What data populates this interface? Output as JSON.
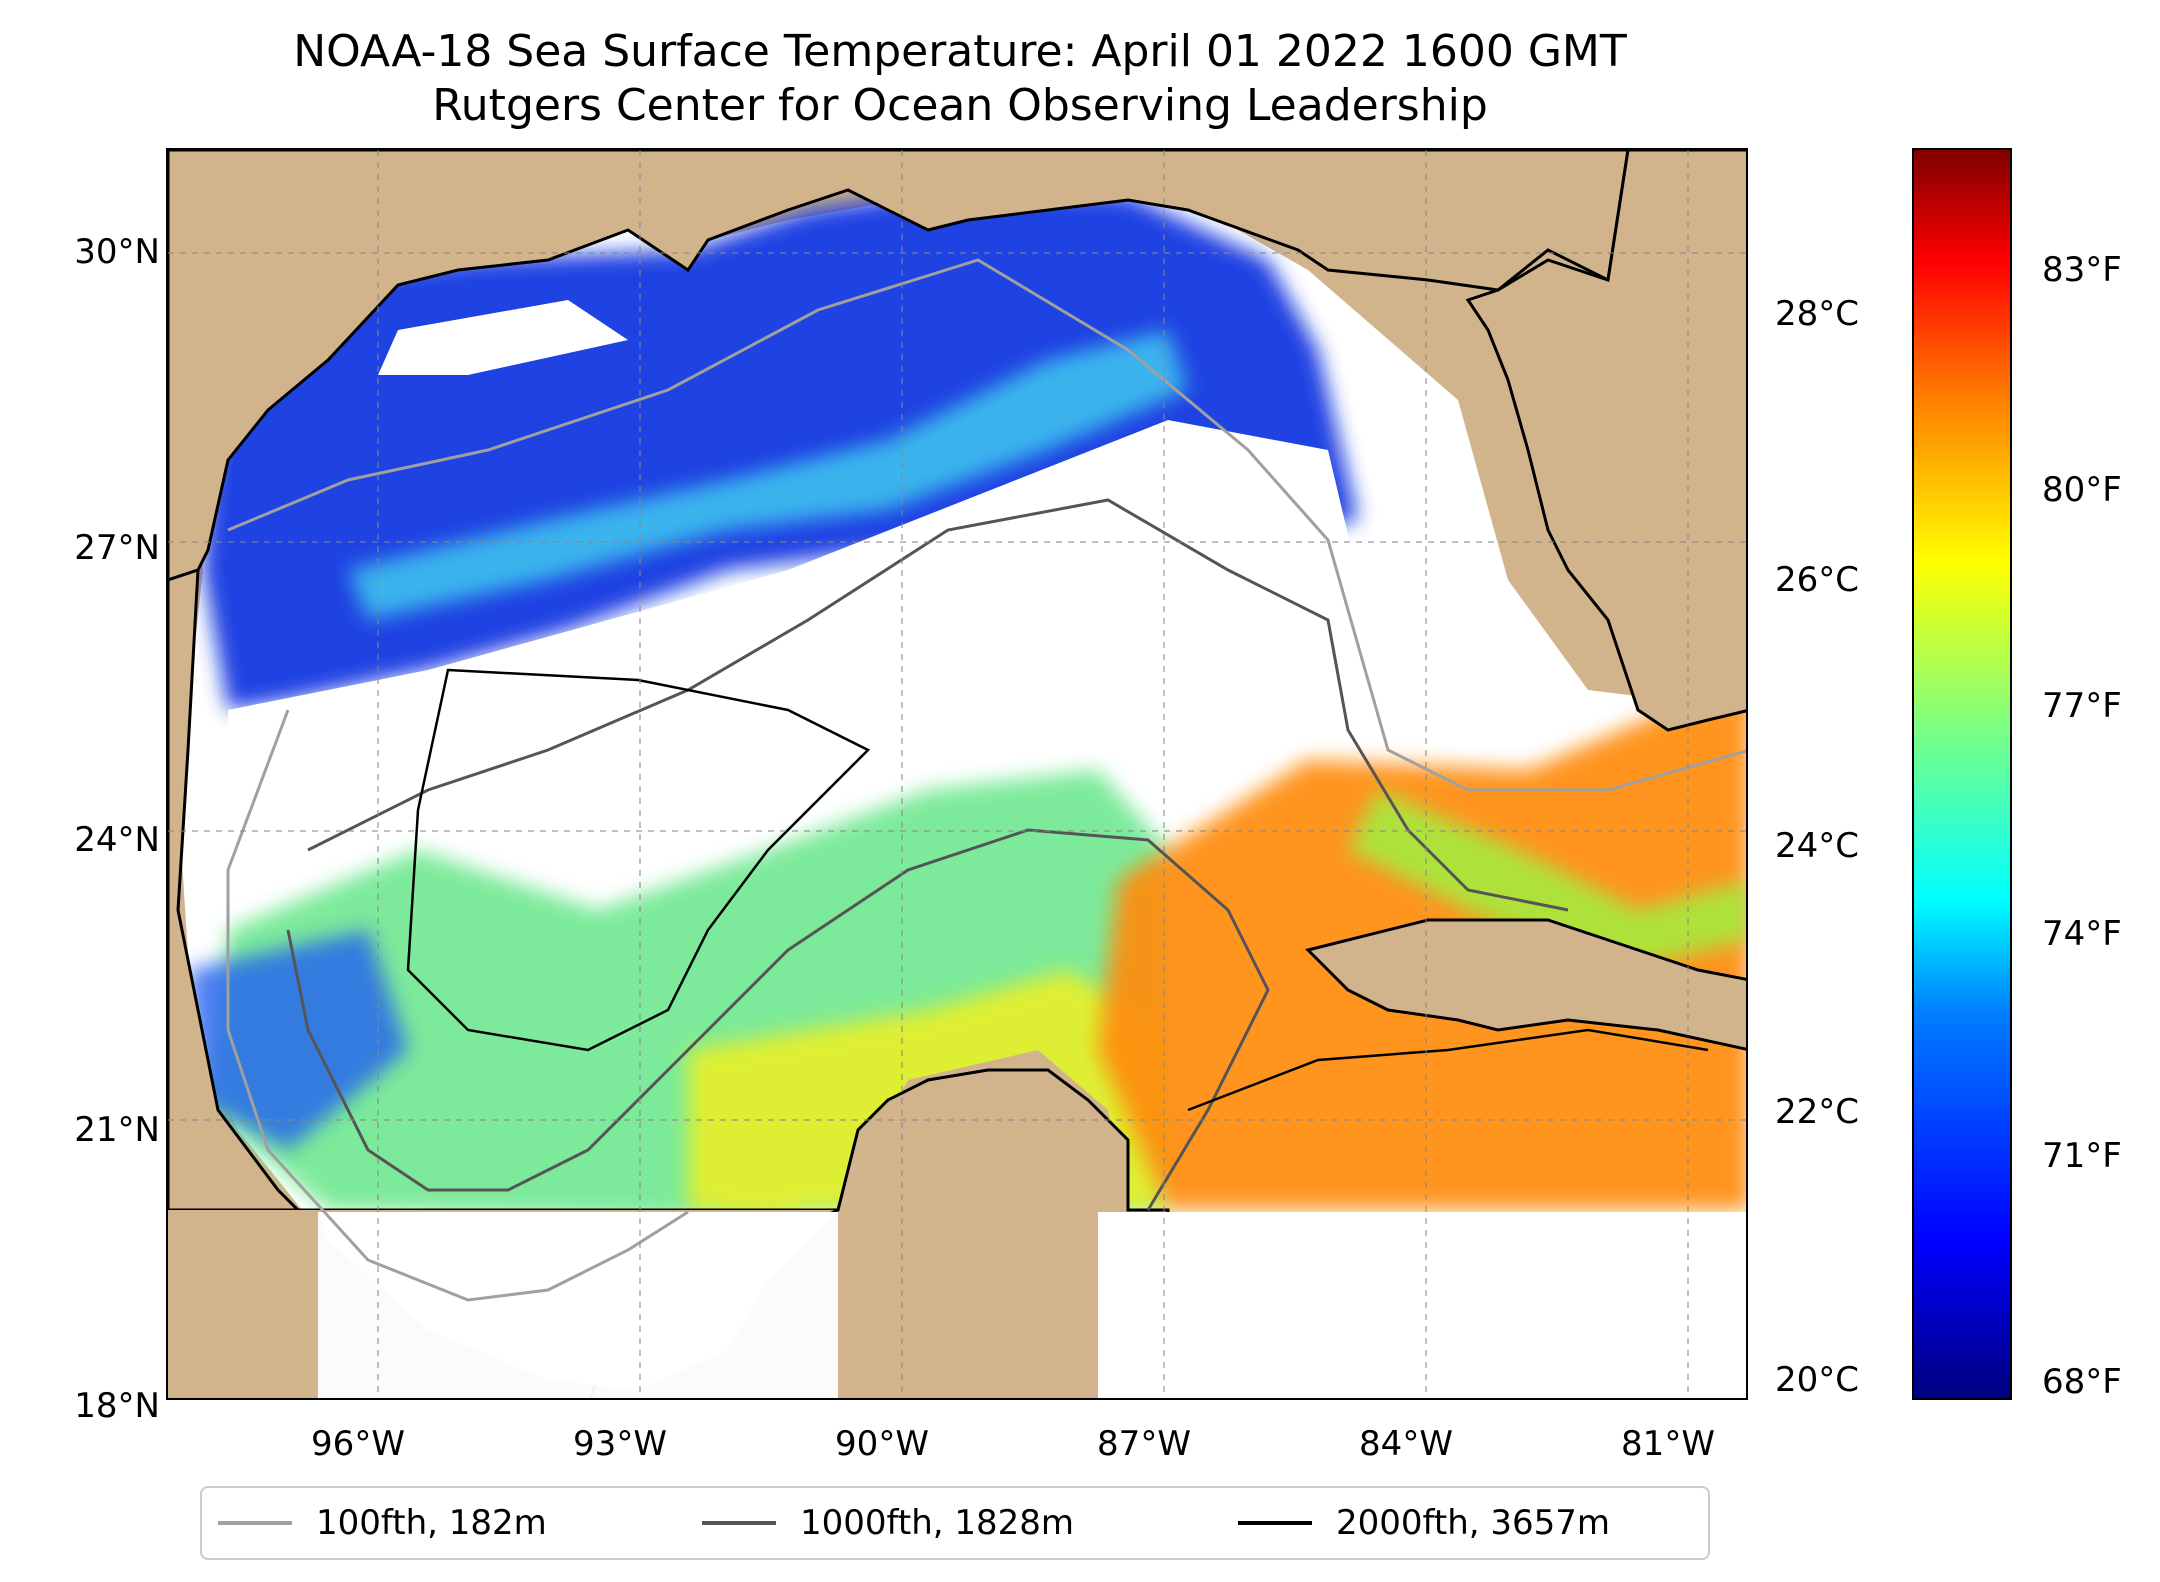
{
  "title": {
    "line1": "NOAA-18 Sea Surface Temperature: April 01 2022 1600 GMT",
    "line2": "Rutgers Center for Ocean Observing Leadership"
  },
  "map": {
    "lat_labels": [
      "30°N",
      "27°N",
      "24°N",
      "21°N",
      "18°N"
    ],
    "lon_labels": [
      "96°W",
      "93°W",
      "90°W",
      "87°W",
      "84°W",
      "81°W"
    ],
    "extent": {
      "lon": [
        -98.3,
        -80.3
      ],
      "lat": [
        18,
        31
      ]
    },
    "land_color": "#d2b48c",
    "gridlines": true
  },
  "colorbar": {
    "celsius_labels": [
      "28°C",
      "26°C",
      "24°C",
      "22°C",
      "20°C"
    ],
    "fahrenheit_labels": [
      "83°F",
      "80°F",
      "77°F",
      "74°F",
      "71°F",
      "68°F"
    ],
    "colormap": "jet",
    "range_celsius": [
      19.8,
      29.3
    ]
  },
  "legend": {
    "items": [
      {
        "label": "100fth, 182m",
        "color": "#a0a0a0"
      },
      {
        "label": "1000fth, 1828m",
        "color": "#555555"
      },
      {
        "label": "2000fth, 3657m",
        "color": "#000000"
      }
    ]
  }
}
